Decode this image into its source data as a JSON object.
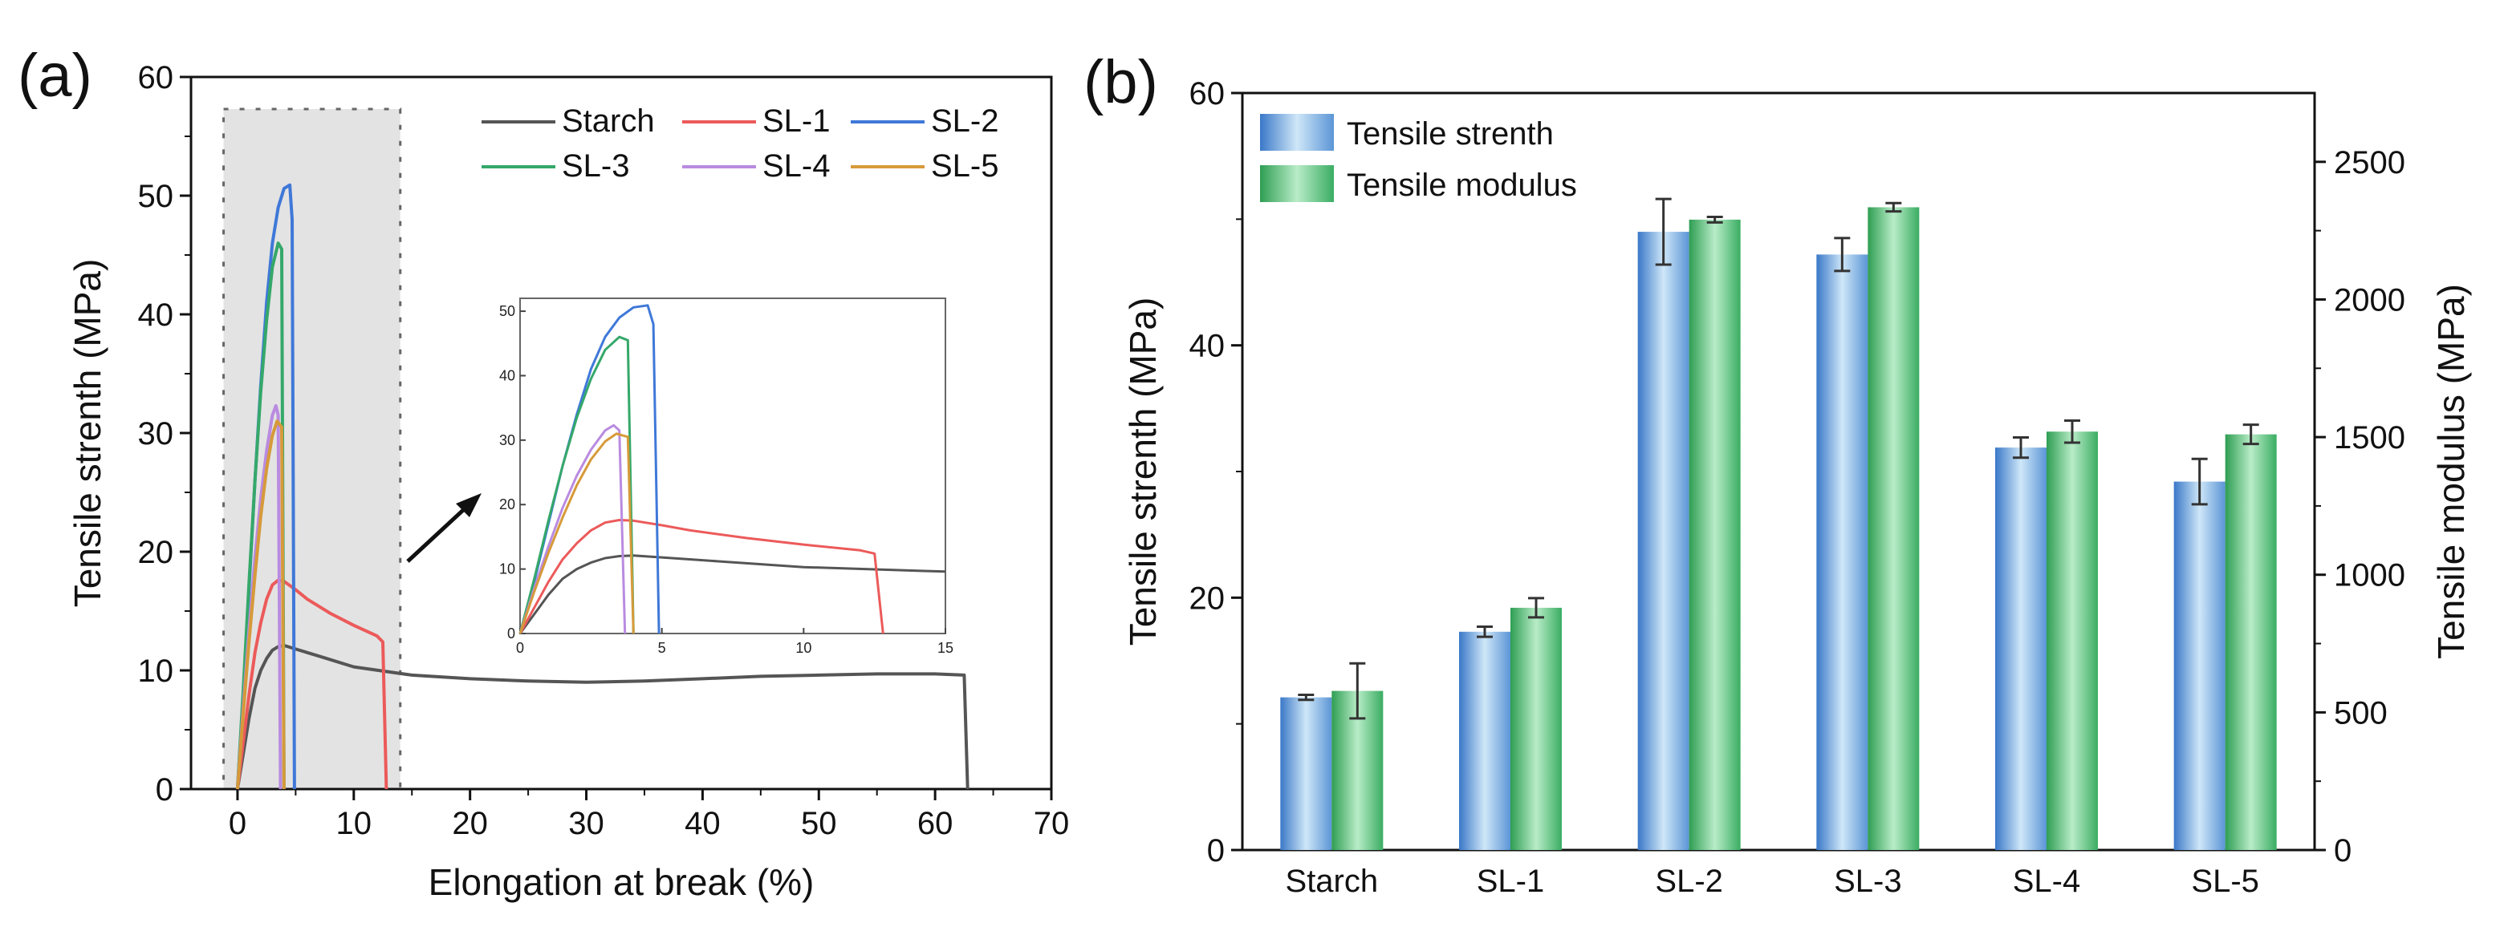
{
  "colors": {
    "Starch": "#555555",
    "SL-1": "#ec5a5a",
    "SL-2": "#3f78d8",
    "SL-3": "#35a86a",
    "SL-4": "#b98be0",
    "SL-5": "#d69a3a",
    "bar_blue": "#3a78c8",
    "bar_green": "#2e9e52"
  },
  "chart_data": [
    {
      "type": "line",
      "panel_label": "(a)",
      "xlabel": "Elongation at break (%)",
      "ylabel": "Tensile strenth (MPa)",
      "xlim": [
        -4,
        70
      ],
      "ylim": [
        0,
        60
      ],
      "xticks": [
        "0",
        "10",
        "20",
        "30",
        "40",
        "50",
        "60",
        "70"
      ],
      "yticks": [
        "0",
        "10",
        "20",
        "30",
        "40",
        "50",
        "60"
      ],
      "legend_position": "top-right",
      "series": [
        {
          "name": "Starch",
          "x": [
            0,
            0.5,
            1,
            1.5,
            2,
            2.5,
            3,
            3.5,
            4,
            5,
            7,
            10,
            15,
            20,
            25,
            30,
            35,
            40,
            45,
            50,
            55,
            60,
            62.5,
            62.8
          ],
          "y": [
            0,
            3,
            6,
            8.5,
            10,
            11,
            11.7,
            12,
            12.1,
            11.8,
            11.2,
            10.3,
            9.6,
            9.3,
            9.1,
            9.0,
            9.1,
            9.3,
            9.5,
            9.6,
            9.7,
            9.7,
            9.6,
            0
          ]
        },
        {
          "name": "SL-1",
          "x": [
            0,
            0.5,
            1,
            1.5,
            2,
            2.5,
            3,
            3.5,
            4,
            5,
            6,
            8,
            10,
            12,
            12.5,
            12.8
          ],
          "y": [
            0,
            4,
            8,
            11.5,
            14,
            16,
            17.2,
            17.6,
            17.5,
            16.8,
            16,
            14.8,
            13.8,
            12.9,
            12.4,
            0
          ]
        },
        {
          "name": "SL-2",
          "x": [
            0,
            0.5,
            1,
            1.5,
            2,
            2.5,
            3,
            3.5,
            4,
            4.5,
            4.7,
            4.9
          ],
          "y": [
            0,
            8,
            17,
            26,
            34,
            41,
            46,
            49,
            50.6,
            50.9,
            48,
            0
          ]
        },
        {
          "name": "SL-3",
          "x": [
            0,
            0.5,
            1,
            1.5,
            2,
            2.5,
            3,
            3.5,
            3.8,
            4.0
          ],
          "y": [
            0,
            8.5,
            17.5,
            26,
            33.5,
            39.5,
            44,
            46,
            45.5,
            0
          ]
        },
        {
          "name": "SL-4",
          "x": [
            0,
            0.5,
            1,
            1.5,
            2,
            2.5,
            3,
            3.3,
            3.5,
            3.7
          ],
          "y": [
            0,
            7,
            13.5,
            19.5,
            24.5,
            28.5,
            31.5,
            32.3,
            31.5,
            0
          ]
        },
        {
          "name": "SL-5",
          "x": [
            0,
            0.5,
            1,
            1.5,
            2,
            2.5,
            3,
            3.4,
            3.8,
            4.0
          ],
          "y": [
            0,
            6.5,
            12.5,
            18,
            23,
            27,
            29.8,
            31,
            30.5,
            0
          ]
        }
      ],
      "highlight_region": {
        "x": [
          -1.2,
          14
        ]
      },
      "inset": {
        "xlim": [
          0,
          15
        ],
        "ylim": [
          0,
          52
        ],
        "xticks": [
          "0",
          "5",
          "10",
          "15"
        ],
        "yticks": [
          "0",
          "10",
          "20",
          "30",
          "40",
          "50"
        ]
      }
    },
    {
      "type": "bar",
      "panel_label": "(b)",
      "categories": [
        "Starch",
        "SL-1",
        "SL-2",
        "SL-3",
        "SL-4",
        "SL-5"
      ],
      "ylabel": "Tensile strenth (MPa)",
      "y2label": "Tensile modulus (MPa)",
      "ylim": [
        0,
        60
      ],
      "y2lim": [
        0,
        2750
      ],
      "yticks": [
        "0",
        "20",
        "40",
        "60"
      ],
      "y2ticks": [
        "0",
        "500",
        "1000",
        "1500",
        "2000",
        "2500"
      ],
      "legend_position": "top-left",
      "series": [
        {
          "name": "Tensile strenth",
          "axis": "left",
          "values": [
            12.1,
            17.3,
            49.0,
            47.2,
            31.9,
            29.2
          ],
          "errors": [
            0.2,
            0.4,
            2.6,
            1.3,
            0.8,
            1.8
          ]
        },
        {
          "name": "Tensile modulus",
          "axis": "right",
          "values": [
            578,
            880,
            2290,
            2335,
            1520,
            1510
          ],
          "errors": [
            100,
            35,
            10,
            15,
            40,
            35
          ]
        }
      ]
    }
  ]
}
